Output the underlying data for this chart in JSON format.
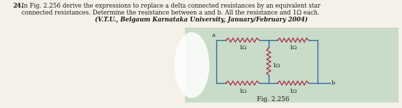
{
  "bg_color": "#f5f0e8",
  "circuit_bg": "#c8dcc8",
  "text_color": "#1a1a1a",
  "italic_bold_color": "#1a1a1a",
  "resistor_color": "#b03050",
  "wire_color": "#3060a0",
  "node_a_label": "a",
  "node_b_label": "b",
  "res_label": "1Ω",
  "fig_caption": "Fig. 2.256",
  "line1": "24.  In Fig. 2.256 derive the expressions to replace a delta connected resistances by an equivalent star",
  "line2": "connected resistances. Determine the resistance between a and b. All the resistance and 1Ω each.",
  "line3": "(V.T.U., Belgaum Karnataka University, January/February 2004)"
}
